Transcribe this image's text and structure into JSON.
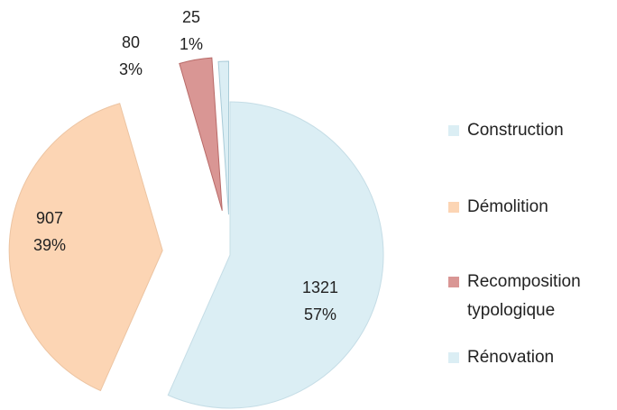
{
  "chart_data": {
    "type": "pie",
    "categories": [
      "Construction",
      "Démolition",
      "Recomposition typologique",
      "Rénovation"
    ],
    "values": [
      1321,
      907,
      80,
      25
    ],
    "percent_labels": [
      "57%",
      "39%",
      "3%",
      "1%"
    ],
    "colors": [
      "#dbeef4",
      "#fcd5b4",
      "#d99694",
      "#dbeef4"
    ]
  }
}
